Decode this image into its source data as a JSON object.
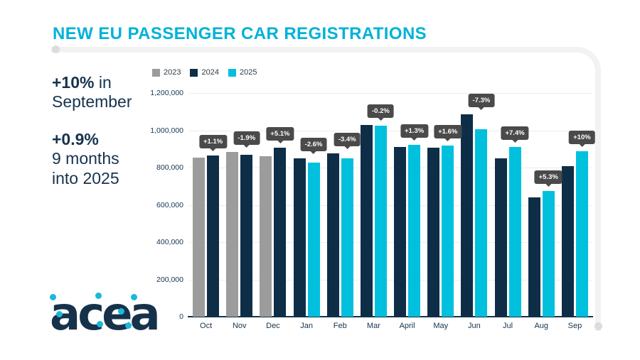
{
  "header": {
    "title": "NEW EU PASSENGER CAR REGISTRATIONS"
  },
  "stats": {
    "first": {
      "value": "+10%",
      "inline": "in",
      "below": "September"
    },
    "second": {
      "value": "+0.9%",
      "below": "9 months\ninto 2025"
    }
  },
  "logo": {
    "text": "acea"
  },
  "colors": {
    "title_cyan": "#00b2d8",
    "navy": "#0e2e47",
    "gray": "#9c9c9c",
    "cyan": "#00c0de",
    "text_navy": "#16334e",
    "tooltip_bg": "#4a4a4a",
    "gridline": "#ececec",
    "frame": "#f2f2f2"
  },
  "chart_data": {
    "type": "bar",
    "title": "NEW EU PASSENGER CAR REGISTRATIONS",
    "categories": [
      "Oct",
      "Nov",
      "Dec",
      "Jan",
      "Feb",
      "Mar",
      "April",
      "May",
      "Jun",
      "Jul",
      "Aug",
      "Sep"
    ],
    "series": [
      {
        "name": "2023",
        "color": "#9c9c9c",
        "values": [
          855000,
          885000,
          861000,
          null,
          null,
          null,
          null,
          null,
          null,
          null,
          null,
          null
        ]
      },
      {
        "name": "2024",
        "color": "#0e2e47",
        "values": [
          865000,
          868000,
          905000,
          850000,
          878000,
          1028000,
          910000,
          906000,
          1086000,
          849000,
          641000,
          806000
        ]
      },
      {
        "name": "2025",
        "color": "#00c0de",
        "values": [
          null,
          null,
          null,
          828000,
          848000,
          1026000,
          922000,
          920000,
          1007000,
          912000,
          675000,
          887000
        ]
      }
    ],
    "change_labels": [
      "+1.1%",
      "-1.9%",
      "+5.1%",
      "-2.6%",
      "-3.4%",
      "-0.2%",
      "+1.3%",
      "+1.6%",
      "-7.3%",
      "+7.4%",
      "+5.3%",
      "+10%"
    ],
    "xlabel": "",
    "ylabel": "",
    "ylim": [
      0,
      1200000
    ],
    "ytick_step": 200000,
    "grid": true,
    "legend_position": "top-left"
  }
}
